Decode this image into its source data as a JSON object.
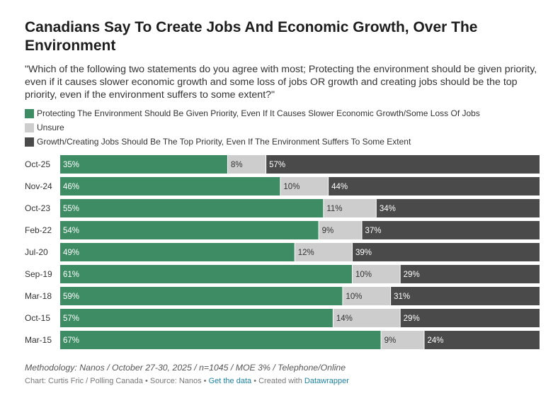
{
  "title": "Canadians Say To Create Jobs And Economic Growth, Over The Environment",
  "subtitle": "\"Which of the following two statements do you agree with most; Protecting the environment should be given priority, even if it causes slower economic growth and some loss of jobs OR growth and creating jobs should be the top priority, even if the environment suffers to some extent?\"",
  "colors": {
    "protect": "#3d8c64",
    "unsure": "#cdcdcd",
    "growth": "#4a4a4a"
  },
  "chart_data": {
    "type": "bar",
    "orientation": "horizontal-stacked",
    "categories": [
      "Oct-25",
      "Nov-24",
      "Oct-23",
      "Feb-22",
      "Jul-20",
      "Sep-19",
      "Mar-18",
      "Oct-15",
      "Mar-15"
    ],
    "series": [
      {
        "name": "Protecting The Environment Should Be Given Priority, Even If It Causes Slower Economic Growth/Some Loss Of Jobs",
        "values": [
          35,
          46,
          55,
          54,
          49,
          61,
          59,
          57,
          67
        ],
        "labels": [
          "35%",
          "46%",
          "55%",
          "54%",
          "49%",
          "61%",
          "59%",
          "57%",
          "67%"
        ]
      },
      {
        "name": "Unsure",
        "values": [
          8,
          10,
          11,
          9,
          12,
          10,
          10,
          14,
          9
        ],
        "labels": [
          "8%",
          "10%",
          "11%",
          "9%",
          "12%",
          "10%",
          "10%",
          "14%",
          "9%"
        ]
      },
      {
        "name": "Growth/Creating Jobs Should Be The Top Priority, Even If The Environment Suffers To Some Extent",
        "values": [
          57,
          44,
          34,
          37,
          39,
          29,
          31,
          29,
          24
        ],
        "labels": [
          "57%",
          "44%",
          "34%",
          "37%",
          "39%",
          "29%",
          "31%",
          "29%",
          "24%"
        ]
      }
    ],
    "xlim": [
      0,
      100
    ]
  },
  "methodology": "Methodology: Nanos / October 27-30, 2025 / n=1045 / MOE 3% / Telephone/Online",
  "footer": {
    "credit": "Chart: Curtis Fric / Polling Canada • Source: Nanos • ",
    "get_data": "Get the data",
    "sep": " • Created with ",
    "datawrapper": "Datawrapper"
  }
}
